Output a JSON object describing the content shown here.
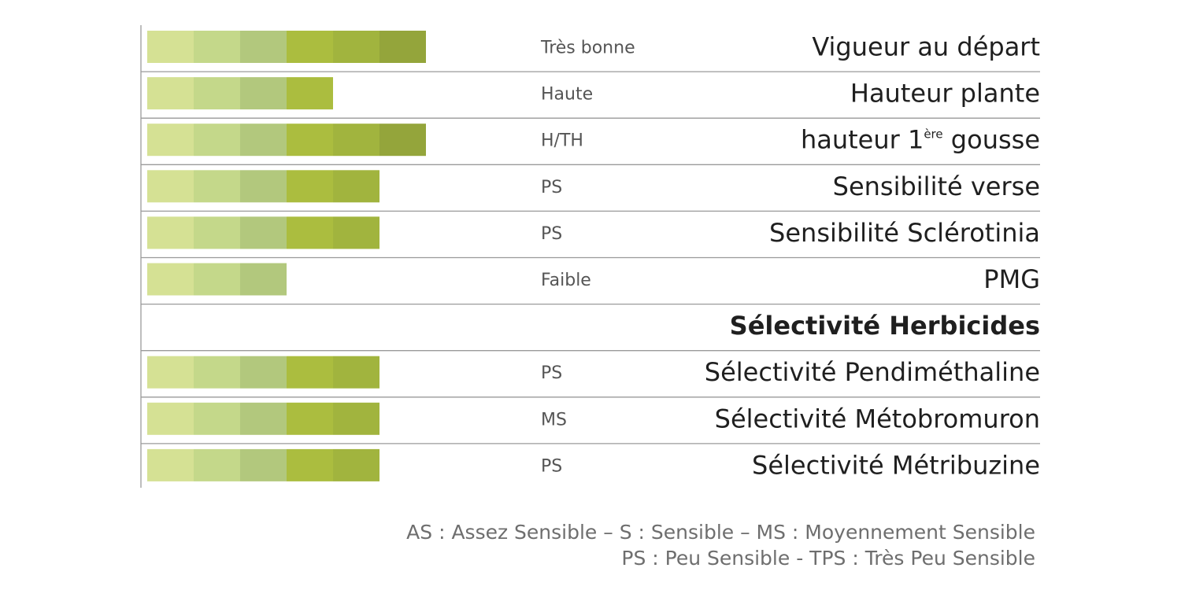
{
  "chart_data": {
    "type": "bar",
    "max_segments": 6,
    "segment_colors": [
      "#d5e194",
      "#c4d88a",
      "#b2c87d",
      "#abbd3f",
      "#a1b43e",
      "#94a53b"
    ],
    "rows": [
      {
        "criterion": "Vigueur au départ",
        "rating": "Très bonne",
        "value": 6
      },
      {
        "criterion": "Hauteur plante",
        "rating": "Haute",
        "value": 4
      },
      {
        "criterion": "hauteur 1",
        "criterion_sup": "ère",
        "criterion_suffix": " gousse",
        "rating": "H/TH",
        "value": 6
      },
      {
        "criterion": "Sensibilité verse",
        "rating": "PS",
        "value": 5
      },
      {
        "criterion": "Sensibilité Sclérotinia",
        "rating": "PS",
        "value": 5
      },
      {
        "criterion": "PMG",
        "rating": "Faible",
        "value": 3
      },
      {
        "criterion": "Sélectivité Herbicides",
        "rating": "",
        "value": 0,
        "is_header": true
      },
      {
        "criterion": "Sélectivité Pendiméthaline",
        "rating": "PS",
        "value": 5
      },
      {
        "criterion": "Sélectivité Métobromuron",
        "rating": "MS",
        "value": 5
      },
      {
        "criterion": "Sélectivité Métribuzine",
        "rating": "PS",
        "value": 5
      }
    ],
    "legend": [
      "AS : Assez Sensible –  S : Sensible – MS : Moyennement Sensible",
      "PS : Peu Sensible - TPS : Très Peu Sensible"
    ]
  }
}
